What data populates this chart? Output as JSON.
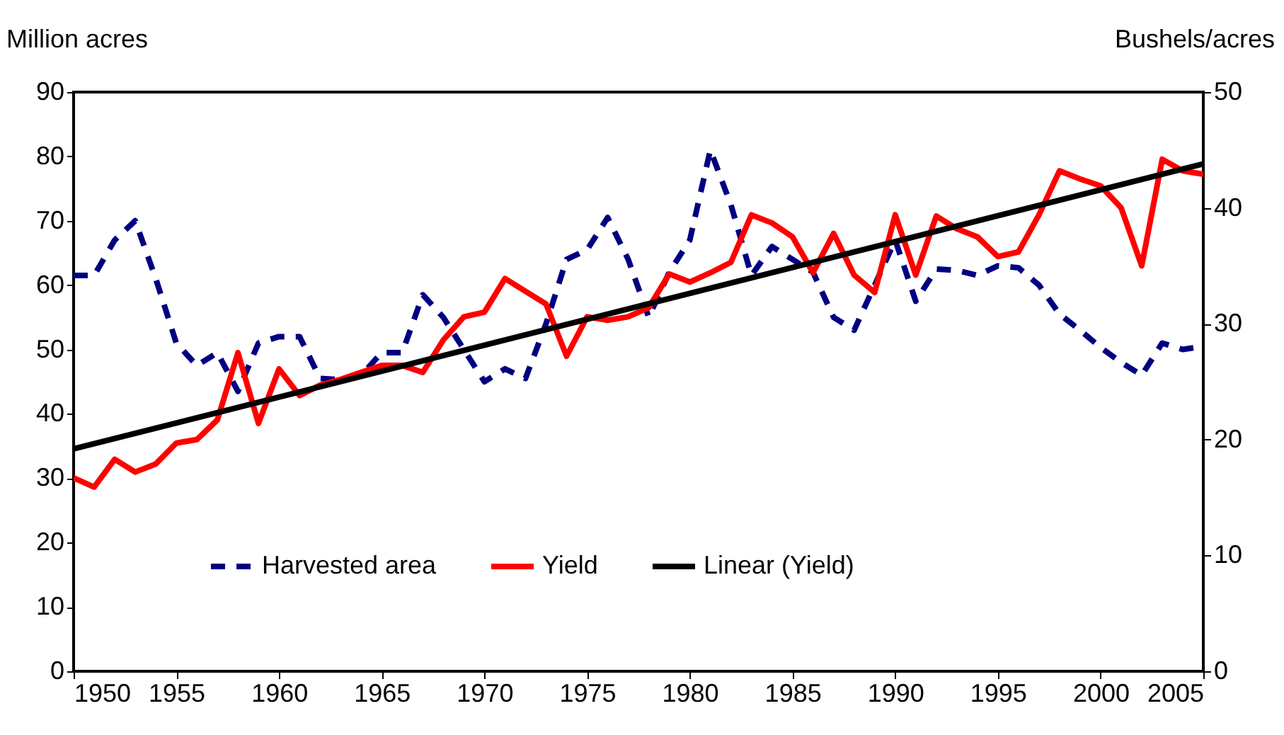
{
  "chart_data": {
    "type": "line",
    "ylabel": "Million acres",
    "y2label": "Bushels/acres",
    "x": [
      1950,
      1951,
      1952,
      1953,
      1954,
      1955,
      1956,
      1957,
      1958,
      1959,
      1960,
      1961,
      1962,
      1963,
      1964,
      1965,
      1966,
      1967,
      1968,
      1969,
      1970,
      1971,
      1972,
      1973,
      1974,
      1975,
      1976,
      1977,
      1978,
      1979,
      1980,
      1981,
      1982,
      1983,
      1984,
      1985,
      1986,
      1987,
      1988,
      1989,
      1990,
      1991,
      1992,
      1993,
      1994,
      1995,
      1996,
      1997,
      1998,
      1999,
      2000,
      2001,
      2002,
      2003,
      2004,
      2005
    ],
    "xlim": [
      1950,
      2005
    ],
    "xticks": [
      1950,
      1955,
      1960,
      1965,
      1970,
      1975,
      1980,
      1985,
      1990,
      1995,
      2000,
      2005
    ],
    "ylim": [
      0,
      90
    ],
    "yticks": [
      0,
      10,
      20,
      30,
      40,
      50,
      60,
      70,
      80,
      90
    ],
    "y2lim": [
      0,
      50
    ],
    "y2ticks": [
      0,
      10,
      20,
      30,
      40,
      50
    ],
    "grid": false,
    "legend": "bottom",
    "series": [
      {
        "name": "Harvested area",
        "color": "#000080",
        "line_style": "dashed",
        "axis": "y",
        "values": [
          61.5,
          61.5,
          67,
          70,
          61,
          51,
          47.5,
          49.5,
          43.5,
          51,
          52,
          52,
          45.5,
          45.3,
          46,
          49.5,
          49.5,
          58.5,
          55,
          50,
          45,
          47,
          45.5,
          54,
          64,
          65.5,
          70.5,
          64,
          55,
          62,
          67,
          81,
          72.5,
          61.5,
          66,
          64,
          62,
          55,
          53,
          60,
          67,
          57.5,
          62.5,
          62.3,
          61.5,
          63,
          62.7,
          60,
          55.5,
          53,
          50.3,
          48,
          46,
          51,
          50,
          50.5
        ]
      },
      {
        "name": "Yield",
        "color": "#ff0000",
        "line_style": "solid",
        "axis": "y2",
        "values": [
          16.7,
          15.9,
          18.3,
          17.2,
          17.9,
          19.7,
          20.0,
          21.7,
          27.5,
          21.4,
          26.1,
          23.8,
          24.7,
          25.2,
          25.8,
          26.4,
          26.4,
          25.8,
          28.6,
          30.6,
          31.0,
          33.9,
          32.8,
          31.7,
          27.2,
          30.6,
          30.3,
          30.6,
          31.4,
          34.3,
          33.6,
          34.4,
          35.3,
          39.4,
          38.7,
          37.5,
          34.4,
          37.8,
          34.2,
          32.7,
          39.4,
          34.2,
          39.3,
          38.2,
          37.5,
          35.8,
          36.2,
          39.4,
          43.2,
          42.5,
          41.9,
          40.0,
          35.0,
          44.2,
          43.2,
          42.9
        ]
      },
      {
        "name": "Linear (Yield)",
        "type": "line",
        "color": "#000000",
        "line_style": "solid",
        "axis": "y2",
        "x": [
          1950,
          2005
        ],
        "values": [
          19.2,
          43.8
        ]
      }
    ]
  }
}
